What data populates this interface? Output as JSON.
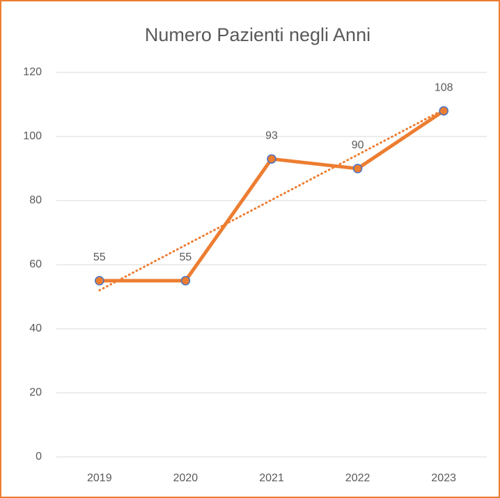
{
  "chart_data": {
    "type": "line",
    "title": "Numero Pazienti negli Anni",
    "categories": [
      "2019",
      "2020",
      "2021",
      "2022",
      "2023"
    ],
    "series": [
      {
        "name": "Numero Pazienti",
        "color": "#ed7d31",
        "marker_edge": "#4472c4",
        "values": [
          55,
          55,
          93,
          90,
          108
        ]
      }
    ],
    "ylim": [
      0,
      120
    ],
    "yticks": [
      0,
      20,
      40,
      60,
      80,
      100,
      120
    ],
    "grid": true,
    "trendline": "linear",
    "data_labels": true
  }
}
